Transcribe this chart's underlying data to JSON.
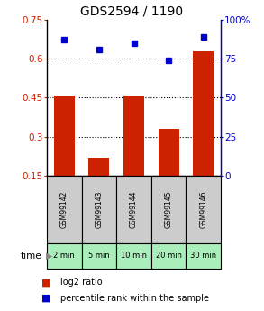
{
  "title": "GDS2594 / 1190",
  "categories": [
    "GSM99142",
    "GSM99143",
    "GSM99144",
    "GSM99145",
    "GSM99146"
  ],
  "time_labels": [
    "2 min",
    "5 min",
    "10 min",
    "20 min",
    "30 min"
  ],
  "log2_ratio": [
    0.46,
    0.22,
    0.46,
    0.33,
    0.63
  ],
  "percentile_rank": [
    87,
    81,
    85,
    74,
    89
  ],
  "bar_color": "#cc2200",
  "dot_color": "#0000cc",
  "left_ylim": [
    0.15,
    0.75
  ],
  "right_ylim": [
    0,
    100
  ],
  "left_yticks": [
    0.15,
    0.3,
    0.45,
    0.6,
    0.75
  ],
  "right_yticks": [
    0,
    25,
    50,
    75,
    100
  ],
  "right_yticklabels": [
    "0",
    "25",
    "50",
    "75",
    "100%"
  ],
  "dotted_lines": [
    0.3,
    0.45,
    0.6
  ],
  "gsm_bg_color": "#cccccc",
  "time_bg_color": "#aaeebb",
  "legend_red_label": "log2 ratio",
  "legend_blue_label": "percentile rank within the sample",
  "title_fontsize": 10,
  "tick_fontsize": 7.5,
  "bar_width": 0.6,
  "fig_width": 2.93,
  "fig_height": 3.45,
  "fig_dpi": 100
}
